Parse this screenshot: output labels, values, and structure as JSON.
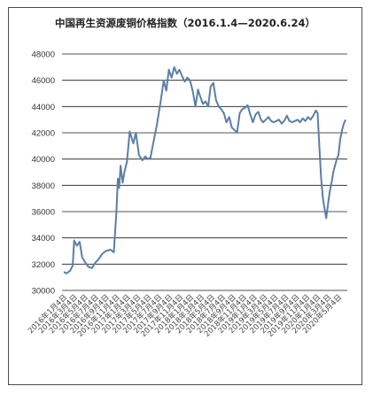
{
  "chart_data": {
    "type": "line",
    "title": "中国再生资源废铜价格指数（2016.1.4—2020.6.24）",
    "xlabel": "",
    "ylabel": "",
    "ylim": [
      30000,
      48000
    ],
    "yticks": [
      30000,
      32000,
      34000,
      36000,
      38000,
      40000,
      42000,
      44000,
      46000,
      48000
    ],
    "grid": "horizontal",
    "legend": "none",
    "line_color": "#5b7fa6",
    "x_tick_labels": [
      "2016年1月4日",
      "2016年3月4日",
      "2016年5月4日",
      "2016年7月4日",
      "2016年9月4日",
      "2016年11月4日",
      "2017年1月4日",
      "2017年3月4日",
      "2017年5月4日",
      "2017年7月4日",
      "2017年9月4日",
      "2017年11月4日",
      "2018年1月4日",
      "2018年3月4日",
      "2018年5月4日",
      "2018年7月4日",
      "2018年9月4日",
      "2018年11月4日",
      "2019年1月4日",
      "2019年3月4日",
      "2019年5月4日",
      "2019年7月4日",
      "2019年9月4日",
      "2019年11月4日",
      "2020年1月4日",
      "2020年3月4日",
      "2020年5月4日"
    ],
    "series": [
      {
        "x": [
          "2016-01-04",
          "2016-01-20",
          "2016-02-10",
          "2016-02-25",
          "2016-03-04",
          "2016-03-20",
          "2016-04-05",
          "2016-04-20",
          "2016-05-04",
          "2016-05-25",
          "2016-06-15",
          "2016-07-04",
          "2016-07-25",
          "2016-08-15",
          "2016-09-04",
          "2016-10-01",
          "2016-10-20",
          "2016-11-04",
          "2016-11-12",
          "2016-11-20",
          "2016-11-28",
          "2016-12-10",
          "2016-12-20",
          "2017-01-04",
          "2017-01-20",
          "2017-02-10",
          "2017-02-25",
          "2017-03-15",
          "2017-04-04",
          "2017-04-20",
          "2017-05-04",
          "2017-05-20",
          "2017-06-10",
          "2017-06-25",
          "2017-07-04",
          "2017-07-20",
          "2017-08-05",
          "2017-08-20",
          "2017-09-04",
          "2017-09-20",
          "2017-10-05",
          "2017-10-20",
          "2017-11-04",
          "2017-11-20",
          "2017-12-05",
          "2017-12-20",
          "2018-01-04",
          "2018-01-20",
          "2018-02-05",
          "2018-02-20",
          "2018-03-04",
          "2018-03-20",
          "2018-04-04",
          "2018-04-20",
          "2018-05-04",
          "2018-05-20",
          "2018-06-04",
          "2018-06-20",
          "2018-07-04",
          "2018-07-20",
          "2018-08-04",
          "2018-08-20",
          "2018-09-04",
          "2018-09-20",
          "2018-10-04",
          "2018-10-20",
          "2018-11-04",
          "2018-11-20",
          "2018-12-04",
          "2018-12-20",
          "2019-01-04",
          "2019-01-20",
          "2019-02-04",
          "2019-02-20",
          "2019-03-04",
          "2019-03-20",
          "2019-04-04",
          "2019-04-20",
          "2019-05-04",
          "2019-05-20",
          "2019-06-04",
          "2019-06-20",
          "2019-07-04",
          "2019-07-20",
          "2019-08-04",
          "2019-08-20",
          "2019-09-04",
          "2019-09-20",
          "2019-10-04",
          "2019-10-20",
          "2019-11-04",
          "2019-11-20",
          "2019-12-04",
          "2019-12-20",
          "2020-01-04",
          "2020-01-14",
          "2020-01-24",
          "2020-02-04",
          "2020-02-14",
          "2020-02-24",
          "2020-03-04",
          "2020-03-14",
          "2020-03-24",
          "2020-04-04",
          "2020-04-14",
          "2020-04-24",
          "2020-05-04",
          "2020-05-14",
          "2020-05-24",
          "2020-06-04",
          "2020-06-14",
          "2020-06-24"
        ],
        "values": [
          31400,
          31300,
          31500,
          31900,
          33800,
          33400,
          33700,
          32500,
          32200,
          31800,
          31700,
          32100,
          32400,
          32800,
          33000,
          33100,
          32900,
          36000,
          38500,
          37800,
          39500,
          38200,
          39000,
          39800,
          42100,
          41200,
          42000,
          40300,
          39900,
          40200,
          40000,
          40100,
          41500,
          42500,
          43200,
          44500,
          46000,
          45200,
          46800,
          46200,
          47000,
          46500,
          46800,
          46300,
          45900,
          46200,
          46000,
          45200,
          44000,
          45300,
          44800,
          44200,
          44400,
          44000,
          45500,
          45800,
          44500,
          44000,
          43800,
          43500,
          42800,
          43200,
          42400,
          42200,
          42000,
          43500,
          43800,
          43900,
          44100,
          43400,
          42800,
          43400,
          43600,
          43000,
          42800,
          43000,
          43200,
          42900,
          42800,
          42900,
          43000,
          42700,
          42900,
          43300,
          42900,
          42800,
          42900,
          43000,
          42800,
          43100,
          42900,
          43200,
          43000,
          43300,
          43700,
          43500,
          41000,
          38500,
          37000,
          36200,
          35500,
          36500,
          37500,
          38200,
          39000,
          39500,
          40000,
          40300,
          41500,
          42200,
          42700,
          43000
        ]
      }
    ]
  }
}
